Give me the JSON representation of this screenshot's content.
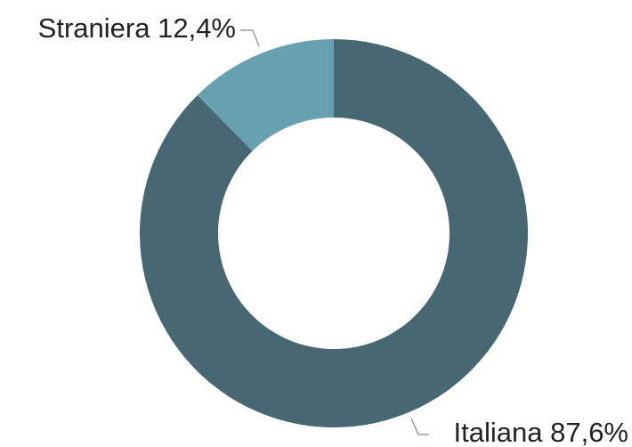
{
  "chart_data": {
    "type": "donut",
    "categories": [
      "Italiana",
      "Straniera"
    ],
    "values": [
      87.6,
      12.4
    ],
    "value_labels": [
      "87,6%",
      "12,4%"
    ],
    "colors": [
      "#476873",
      "#67a0b1"
    ]
  }
}
